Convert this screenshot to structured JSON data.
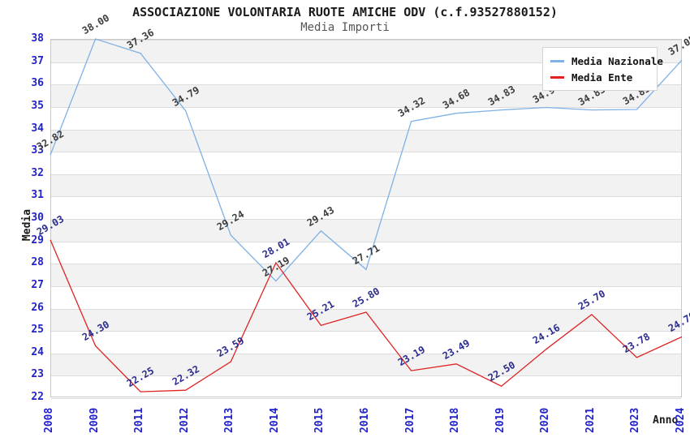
{
  "chart_data": {
    "type": "line",
    "title": "ASSOCIAZIONE VOLONTARIA RUOTE AMICHE ODV (c.f.93527880152)",
    "subtitle": "Media Importi",
    "xlabel": "Anno",
    "ylabel": "Media",
    "ylim": [
      22,
      38
    ],
    "ytick_step": 1,
    "grid": "horizontal-only",
    "band_fill": "alternating gray/white from top",
    "legend_position": "top-right",
    "categories": [
      "2008",
      "2009",
      "2011",
      "2012",
      "2013",
      "2014",
      "2015",
      "2016",
      "2017",
      "2018",
      "2019",
      "2020",
      "2021",
      "2023",
      "2024"
    ],
    "series": [
      {
        "name": "Media Nazionale",
        "color": "#7eb1e6",
        "label_color": "#3c3c3c",
        "values": [
          32.82,
          38.0,
          37.36,
          34.79,
          29.24,
          27.19,
          29.43,
          27.71,
          34.32,
          34.68,
          34.83,
          34.94,
          34.83,
          34.85,
          37.05
        ]
      },
      {
        "name": "Media Ente",
        "color": "#e02222",
        "label_color": "#2b2b8e",
        "values": [
          29.03,
          24.3,
          22.25,
          22.32,
          23.59,
          28.01,
          25.21,
          25.8,
          23.19,
          23.49,
          22.5,
          24.16,
          25.7,
          23.78,
          24.7
        ]
      }
    ]
  },
  "colors": {
    "tick_text": "#2222cc",
    "band": "#f2f2f2",
    "gridline": "#dcdcdc",
    "plot_border": "#c8c8c8",
    "title": "#1a1a1a",
    "subtitle": "#555555"
  }
}
